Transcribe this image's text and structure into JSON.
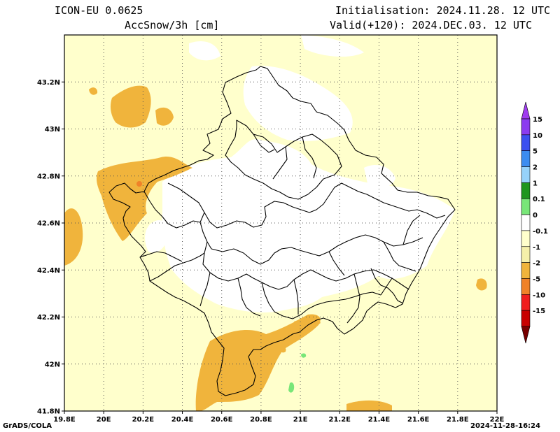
{
  "header": {
    "model": "ICON-EU 0.0625",
    "variable": "AccSnow/3h [cm]",
    "init": "Initialisation: 2024.11.28. 12 UTC",
    "valid": "Valid(+120): 2024.DEC.03. 12 UTC"
  },
  "axes": {
    "lat_range": [
      41.8,
      43.4
    ],
    "lon_range": [
      19.8,
      22.0
    ],
    "lat_ticks": [
      {
        "value": 41.8,
        "label": "41.8N"
      },
      {
        "value": 42.0,
        "label": "42N"
      },
      {
        "value": 42.2,
        "label": "42.2N"
      },
      {
        "value": 42.4,
        "label": "42.4N"
      },
      {
        "value": 42.6,
        "label": "42.6N"
      },
      {
        "value": 42.8,
        "label": "42.8N"
      },
      {
        "value": 43.0,
        "label": "43N"
      },
      {
        "value": 43.2,
        "label": "43.2N"
      }
    ],
    "lon_ticks": [
      {
        "value": 19.8,
        "label": "19.8E"
      },
      {
        "value": 20.0,
        "label": "20E"
      },
      {
        "value": 20.2,
        "label": "20.2E"
      },
      {
        "value": 20.4,
        "label": "20.4E"
      },
      {
        "value": 20.6,
        "label": "20.6E"
      },
      {
        "value": 20.8,
        "label": "20.8E"
      },
      {
        "value": 21.0,
        "label": "21E"
      },
      {
        "value": 21.2,
        "label": "21.2E"
      },
      {
        "value": 21.4,
        "label": "21.4E"
      },
      {
        "value": 21.6,
        "label": "21.6E"
      },
      {
        "value": 21.8,
        "label": "21.8E"
      },
      {
        "value": 22.0,
        "label": "22E"
      }
    ],
    "grid": true
  },
  "legend": {
    "placement": "right",
    "levels": [
      {
        "label": "15",
        "color": "#8b3cf0"
      },
      {
        "label": "10",
        "color": "#3c50f0"
      },
      {
        "label": "5",
        "color": "#3c8cf0"
      },
      {
        "label": "2",
        "color": "#96d2fa"
      },
      {
        "label": "1",
        "color": "#1e961e"
      },
      {
        "label": "0.1",
        "color": "#78e678"
      },
      {
        "label": "0",
        "color": "#ffffff"
      },
      {
        "label": "-0.1",
        "color": "#ffffcc"
      },
      {
        "label": "-1",
        "color": "#f5f0aa"
      },
      {
        "label": "-2",
        "color": "#f0b43c"
      },
      {
        "label": "-5",
        "color": "#f08228"
      },
      {
        "label": "-10",
        "color": "#f01e1e"
      },
      {
        "label": "-15",
        "color": "#c80000"
      }
    ],
    "top_arrow_color": "#a03cf0",
    "bottom_arrow_color": "#780000"
  },
  "footer": {
    "left": "GrADS/COLA",
    "right": "2024-11-28-16:24"
  }
}
